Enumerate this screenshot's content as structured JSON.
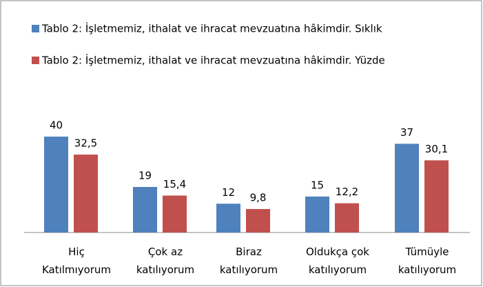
{
  "chart_data": {
    "type": "bar",
    "categories": [
      "Hiç\nKatılmıyorum",
      "Çok az\nkatılıyorum",
      "Biraz\nkatılıyorum",
      "Oldukça çok\nkatılıyorum",
      "Tümüyle\nkatılıyorum"
    ],
    "series": [
      {
        "name": "Tablo 2: İşletmemiz, ithalat ve ihracat mevzuatına hâkimdir. Sıklık",
        "color": "#4f81bd",
        "values": [
          40,
          19,
          12,
          15,
          37
        ]
      },
      {
        "name": "Tablo 2: İşletmemiz, ithalat ve ihracat mevzuatına hâkimdir. Yüzde",
        "color": "#c0504d",
        "values": [
          32.5,
          15.4,
          9.8,
          12.2,
          30.1
        ],
        "value_labels": [
          "32,5",
          "15,4",
          "9,8",
          "12,2",
          "30,1"
        ]
      }
    ],
    "ylim": [
      0,
      40
    ]
  }
}
